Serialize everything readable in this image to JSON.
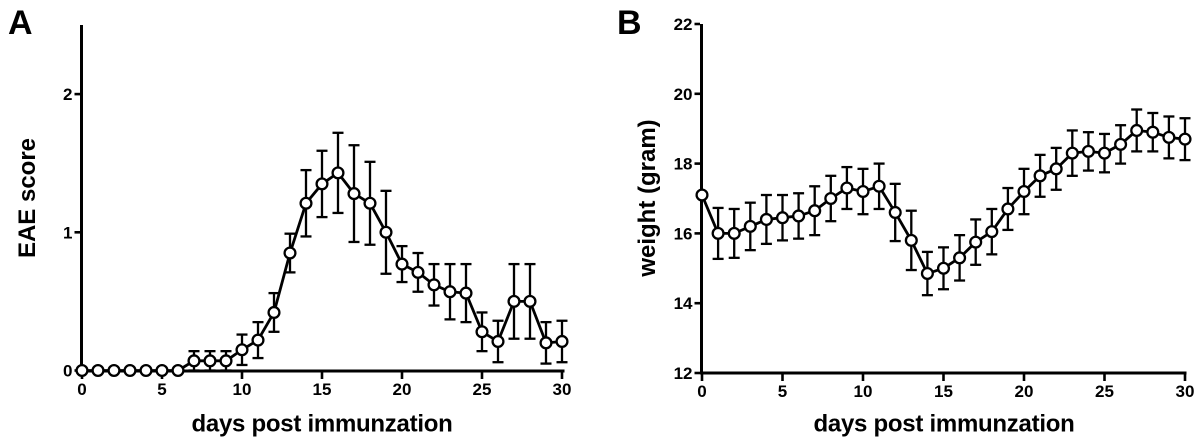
{
  "figure": {
    "background_color": "#ffffff",
    "ink_color": "#000000",
    "marker_fill_color": "#ffffff",
    "marker_style": "open-circle",
    "description": "Two-panel scientific line figure with mean values and error bars"
  },
  "chart_data": [
    {
      "type": "line",
      "panel_letter": "A",
      "xlabel": "days post immunzation",
      "ylabel": "EAE score",
      "xlim": [
        0,
        30
      ],
      "ylim": [
        0,
        2.5
      ],
      "xticks": [
        0,
        5,
        10,
        15,
        20,
        25,
        30
      ],
      "yticks": [
        0,
        1,
        2
      ],
      "grid": false,
      "legend": "none",
      "marker": "open-circle",
      "error_bars": "symmetric, clipped at 0",
      "x": [
        0,
        1,
        2,
        3,
        4,
        5,
        6,
        7,
        8,
        9,
        10,
        11,
        12,
        13,
        14,
        15,
        16,
        17,
        18,
        19,
        20,
        21,
        22,
        23,
        24,
        25,
        26,
        27,
        28,
        29,
        30
      ],
      "values": [
        0,
        0,
        0,
        0,
        0,
        0,
        0,
        0.07,
        0.07,
        0.07,
        0.15,
        0.22,
        0.42,
        0.85,
        1.21,
        1.35,
        1.43,
        1.28,
        1.21,
        1.0,
        0.77,
        0.71,
        0.62,
        0.57,
        0.56,
        0.28,
        0.21,
        0.5,
        0.5,
        0.2,
        0.21
      ],
      "errors": [
        0,
        0,
        0,
        0,
        0,
        0,
        0,
        0.07,
        0.07,
        0.07,
        0.11,
        0.13,
        0.14,
        0.14,
        0.24,
        0.24,
        0.29,
        0.35,
        0.3,
        0.3,
        0.13,
        0.14,
        0.15,
        0.2,
        0.21,
        0.14,
        0.15,
        0.27,
        0.27,
        0.15,
        0.15
      ]
    },
    {
      "type": "line",
      "panel_letter": "B",
      "xlabel": "days post immunzation",
      "ylabel": "weight (gram)",
      "xlim": [
        0,
        30
      ],
      "ylim": [
        12,
        22
      ],
      "xticks": [
        0,
        5,
        10,
        15,
        20,
        25,
        30
      ],
      "yticks": [
        12,
        14,
        16,
        18,
        20,
        22
      ],
      "grid": false,
      "legend": "none",
      "marker": "open-circle",
      "error_bars": "symmetric",
      "x": [
        0,
        1,
        2,
        3,
        4,
        5,
        6,
        7,
        8,
        9,
        10,
        11,
        12,
        13,
        14,
        15,
        16,
        17,
        18,
        19,
        20,
        21,
        22,
        23,
        24,
        25,
        26,
        27,
        28,
        29,
        30
      ],
      "values": [
        17.1,
        16.0,
        16.0,
        16.2,
        16.4,
        16.45,
        16.5,
        16.65,
        17.0,
        17.3,
        17.2,
        17.35,
        16.6,
        15.8,
        14.85,
        15.0,
        15.3,
        15.75,
        16.05,
        16.7,
        17.2,
        17.65,
        17.85,
        18.3,
        18.35,
        18.3,
        18.55,
        18.95,
        18.9,
        18.75,
        18.7
      ],
      "errors": [
        0,
        0.73,
        0.7,
        0.68,
        0.7,
        0.65,
        0.65,
        0.7,
        0.65,
        0.6,
        0.65,
        0.65,
        0.82,
        0.85,
        0.62,
        0.6,
        0.65,
        0.65,
        0.65,
        0.6,
        0.65,
        0.6,
        0.6,
        0.65,
        0.55,
        0.55,
        0.55,
        0.6,
        0.55,
        0.6,
        0.6
      ]
    }
  ]
}
